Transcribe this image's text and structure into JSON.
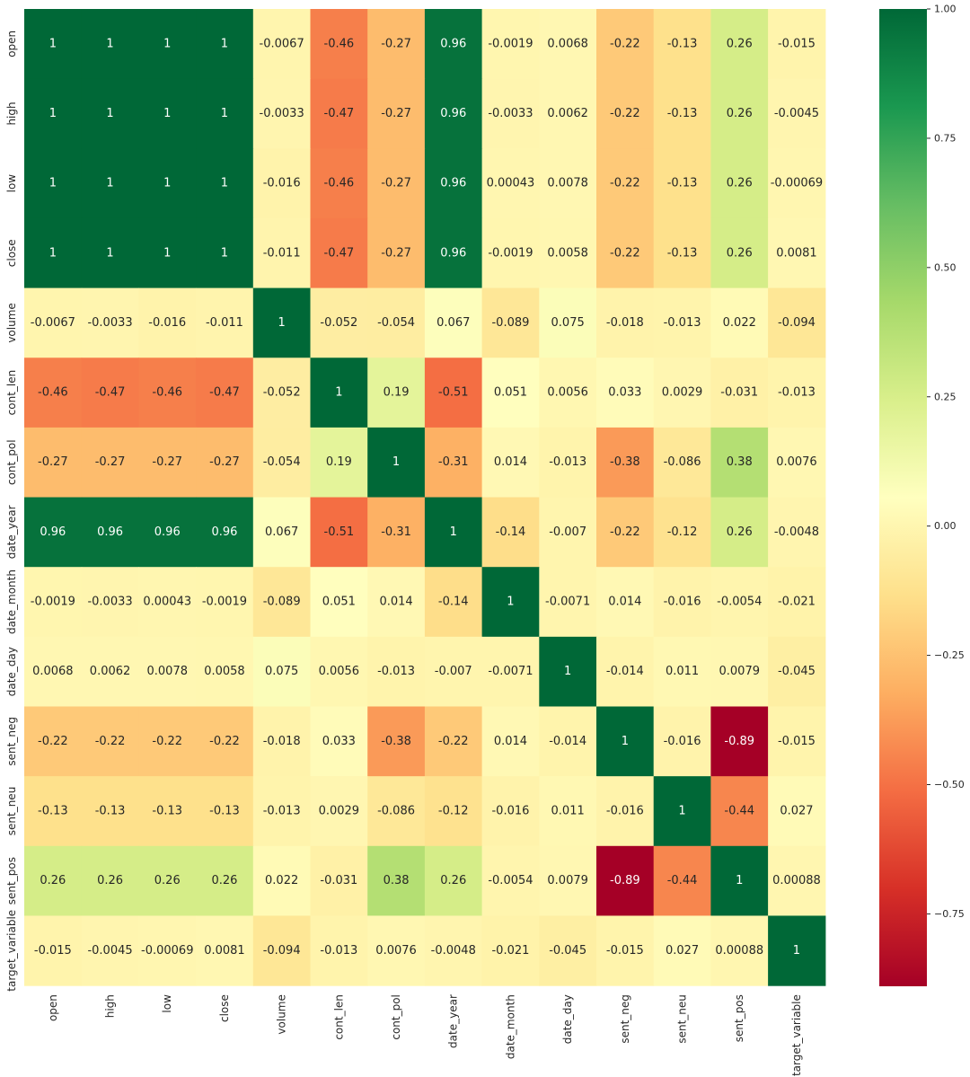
{
  "chart_data": {
    "type": "heatmap",
    "title": "",
    "xlabel": "",
    "ylabel": "",
    "colormap": "RdYlGn",
    "annotated": true,
    "vmin": -0.89,
    "vmax": 1.0,
    "row_labels": [
      "open",
      "high",
      "low",
      "close",
      "volume",
      "cont_len",
      "cont_pol",
      "date_year",
      "date_month",
      "date_day",
      "sent_neg",
      "sent_neu",
      "sent_pos",
      "target_variable"
    ],
    "col_labels": [
      "open",
      "high",
      "low",
      "close",
      "volume",
      "cont_len",
      "cont_pol",
      "date_year",
      "date_month",
      "date_day",
      "sent_neg",
      "sent_neu",
      "sent_pos",
      "target_variable"
    ],
    "values": [
      [
        1,
        1,
        1,
        1,
        -0.0067,
        -0.46,
        -0.27,
        0.96,
        -0.0019,
        0.0068,
        -0.22,
        -0.13,
        0.26,
        -0.015
      ],
      [
        1,
        1,
        1,
        1,
        -0.0033,
        -0.47,
        -0.27,
        0.96,
        -0.0033,
        0.0062,
        -0.22,
        -0.13,
        0.26,
        -0.0045
      ],
      [
        1,
        1,
        1,
        1,
        -0.016,
        -0.46,
        -0.27,
        0.96,
        0.00043,
        0.0078,
        -0.22,
        -0.13,
        0.26,
        -0.00069
      ],
      [
        1,
        1,
        1,
        1,
        -0.011,
        -0.47,
        -0.27,
        0.96,
        -0.0019,
        0.0058,
        -0.22,
        -0.13,
        0.26,
        0.0081
      ],
      [
        -0.0067,
        -0.0033,
        -0.016,
        -0.011,
        1,
        -0.052,
        -0.054,
        0.067,
        -0.089,
        0.075,
        -0.018,
        -0.013,
        0.022,
        -0.094
      ],
      [
        -0.46,
        -0.47,
        -0.46,
        -0.47,
        -0.052,
        1,
        0.19,
        -0.51,
        0.051,
        0.0056,
        0.033,
        0.0029,
        -0.031,
        -0.013
      ],
      [
        -0.27,
        -0.27,
        -0.27,
        -0.27,
        -0.054,
        0.19,
        1,
        -0.31,
        0.014,
        -0.013,
        -0.38,
        -0.086,
        0.38,
        0.0076
      ],
      [
        0.96,
        0.96,
        0.96,
        0.96,
        0.067,
        -0.51,
        -0.31,
        1,
        -0.14,
        -0.007,
        -0.22,
        -0.12,
        0.26,
        -0.0048
      ],
      [
        -0.0019,
        -0.0033,
        0.00043,
        -0.0019,
        -0.089,
        0.051,
        0.014,
        -0.14,
        1,
        -0.0071,
        0.014,
        -0.016,
        -0.0054,
        -0.021
      ],
      [
        0.0068,
        0.0062,
        0.0078,
        0.0058,
        0.075,
        0.0056,
        -0.013,
        -0.007,
        -0.0071,
        1,
        -0.014,
        0.011,
        0.0079,
        -0.045
      ],
      [
        -0.22,
        -0.22,
        -0.22,
        -0.22,
        -0.018,
        0.033,
        -0.38,
        -0.22,
        0.014,
        -0.014,
        1,
        -0.016,
        -0.89,
        -0.015
      ],
      [
        -0.13,
        -0.13,
        -0.13,
        -0.13,
        -0.013,
        0.0029,
        -0.086,
        -0.12,
        -0.016,
        0.011,
        -0.016,
        1,
        -0.44,
        0.027
      ],
      [
        0.26,
        0.26,
        0.26,
        0.26,
        0.022,
        -0.031,
        0.38,
        0.26,
        -0.0054,
        0.0079,
        -0.89,
        -0.44,
        1,
        0.00088
      ],
      [
        -0.015,
        -0.0045,
        -0.00069,
        0.0081,
        -0.094,
        -0.013,
        0.0076,
        -0.0048,
        -0.021,
        -0.045,
        -0.015,
        0.027,
        0.00088,
        1
      ]
    ],
    "value_labels": [
      [
        "1",
        "1",
        "1",
        "1",
        "-0.0067",
        "-0.46",
        "-0.27",
        "0.96",
        "-0.0019",
        "0.0068",
        "-0.22",
        "-0.13",
        "0.26",
        "-0.015"
      ],
      [
        "1",
        "1",
        "1",
        "1",
        "-0.0033",
        "-0.47",
        "-0.27",
        "0.96",
        "-0.0033",
        "0.0062",
        "-0.22",
        "-0.13",
        "0.26",
        "-0.0045"
      ],
      [
        "1",
        "1",
        "1",
        "1",
        "-0.016",
        "-0.46",
        "-0.27",
        "0.96",
        "0.00043",
        "0.0078",
        "-0.22",
        "-0.13",
        "0.26",
        "-0.00069"
      ],
      [
        "1",
        "1",
        "1",
        "1",
        "-0.011",
        "-0.47",
        "-0.27",
        "0.96",
        "-0.0019",
        "0.0058",
        "-0.22",
        "-0.13",
        "0.26",
        "0.0081"
      ],
      [
        "-0.0067",
        "-0.0033",
        "-0.016",
        "-0.011",
        "1",
        "-0.052",
        "-0.054",
        "0.067",
        "-0.089",
        "0.075",
        "-0.018",
        "-0.013",
        "0.022",
        "-0.094"
      ],
      [
        "-0.46",
        "-0.47",
        "-0.46",
        "-0.47",
        "-0.052",
        "1",
        "0.19",
        "-0.51",
        "0.051",
        "0.0056",
        "0.033",
        "0.0029",
        "-0.031",
        "-0.013"
      ],
      [
        "-0.27",
        "-0.27",
        "-0.27",
        "-0.27",
        "-0.054",
        "0.19",
        "1",
        "-0.31",
        "0.014",
        "-0.013",
        "-0.38",
        "-0.086",
        "0.38",
        "0.0076"
      ],
      [
        "0.96",
        "0.96",
        "0.96",
        "0.96",
        "0.067",
        "-0.51",
        "-0.31",
        "1",
        "-0.14",
        "-0.007",
        "-0.22",
        "-0.12",
        "0.26",
        "-0.0048"
      ],
      [
        "-0.0019",
        "-0.0033",
        "0.00043",
        "-0.0019",
        "-0.089",
        "0.051",
        "0.014",
        "-0.14",
        "1",
        "-0.0071",
        "0.014",
        "-0.016",
        "-0.0054",
        "-0.021"
      ],
      [
        "0.0068",
        "0.0062",
        "0.0078",
        "0.0058",
        "0.075",
        "0.0056",
        "-0.013",
        "-0.007",
        "-0.0071",
        "1",
        "-0.014",
        "0.011",
        "0.0079",
        "-0.045"
      ],
      [
        "-0.22",
        "-0.22",
        "-0.22",
        "-0.22",
        "-0.018",
        "0.033",
        "-0.38",
        "-0.22",
        "0.014",
        "-0.014",
        "1",
        "-0.016",
        "-0.89",
        "-0.015"
      ],
      [
        "-0.13",
        "-0.13",
        "-0.13",
        "-0.13",
        "-0.013",
        "0.0029",
        "-0.086",
        "-0.12",
        "-0.016",
        "0.011",
        "-0.016",
        "1",
        "-0.44",
        "0.027"
      ],
      [
        "0.26",
        "0.26",
        "0.26",
        "0.26",
        "0.022",
        "-0.031",
        "0.38",
        "0.26",
        "-0.0054",
        "0.0079",
        "-0.89",
        "-0.44",
        "1",
        "0.00088"
      ],
      [
        "-0.015",
        "-0.0045",
        "-0.00069",
        "0.0081",
        "-0.094",
        "-0.013",
        "0.0076",
        "-0.0048",
        "-0.021",
        "-0.045",
        "-0.015",
        "0.027",
        "0.00088",
        "1"
      ]
    ],
    "colorbar": {
      "ticks": [
        1.0,
        0.75,
        0.5,
        0.25,
        0.0,
        -0.25,
        -0.5,
        -0.75
      ],
      "tick_labels": [
        "1.00",
        "0.75",
        "0.50",
        "0.25",
        "0.00",
        "−0.25",
        "−0.50",
        "−0.75"
      ]
    }
  },
  "colors": {
    "text_dark": "#262626",
    "text_light": "#ffffff",
    "axis_text": "#262626",
    "colormap_stops": [
      "#a50026",
      "#d73027",
      "#f46d43",
      "#fdae61",
      "#fee08b",
      "#ffffbf",
      "#d9ef8b",
      "#a6d96a",
      "#66bd63",
      "#1a9850",
      "#006837"
    ]
  }
}
